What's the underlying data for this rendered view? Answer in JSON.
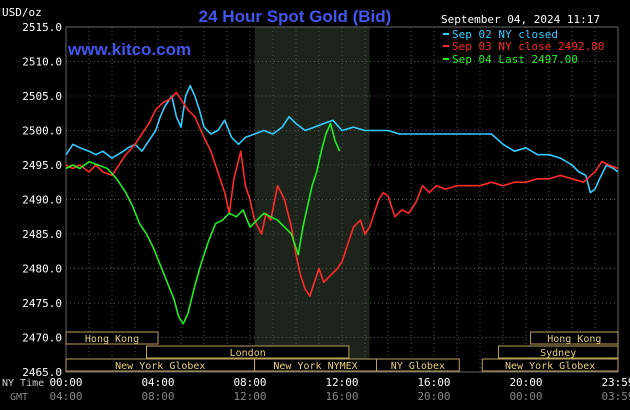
{
  "chart_data": {
    "type": "line",
    "title": "24 Hour Spot Gold (Bid)",
    "watermark": "www.kitco.com",
    "date_label": "September 04, 2024 11:17",
    "ylabel": "USD/oz",
    "ylim": [
      2465,
      2515
    ],
    "xlim": [
      0,
      24
    ],
    "grid": true,
    "legend_position": "top-right",
    "y_ticks": [
      {
        "value": 2515,
        "label": "2515.0"
      },
      {
        "value": 2510,
        "label": "2510.0"
      },
      {
        "value": 2505,
        "label": "2505.0"
      },
      {
        "value": 2500,
        "label": "2500.0"
      },
      {
        "value": 2495,
        "label": "2495.0"
      },
      {
        "value": 2490,
        "label": "2490.0"
      },
      {
        "value": 2485,
        "label": "2485.0"
      },
      {
        "value": 2480,
        "label": "2480.0"
      },
      {
        "value": 2475,
        "label": "2475.0"
      },
      {
        "value": 2470,
        "label": "2470.0"
      },
      {
        "value": 2465,
        "label": "2465.0"
      }
    ],
    "x_axis_label": "NY Time",
    "x_ticks": [
      {
        "hour": 0,
        "label": "00:00"
      },
      {
        "hour": 4,
        "label": "04:00"
      },
      {
        "hour": 8,
        "label": "08:00"
      },
      {
        "hour": 12,
        "label": "12:00"
      },
      {
        "hour": 16,
        "label": "16:00"
      },
      {
        "hour": 20,
        "label": "20:00"
      },
      {
        "hour": 24,
        "label": "23:59"
      }
    ],
    "x2_axis_label": "GMT",
    "x2_ticks": [
      {
        "hour": 0,
        "label": "04:00"
      },
      {
        "hour": 4,
        "label": "08:00"
      },
      {
        "hour": 8,
        "label": "12:00"
      },
      {
        "hour": 12,
        "label": "16:00"
      },
      {
        "hour": 16,
        "label": "20:00"
      },
      {
        "hour": 20,
        "label": "00:00"
      },
      {
        "hour": 24,
        "label": "03:59"
      }
    ],
    "highlight_band": [
      8.2,
      13.2
    ],
    "sessions": [
      {
        "name": "Hong Kong",
        "row": 0,
        "start": 0,
        "end": 4
      },
      {
        "name": "Hong Kong",
        "row": 0,
        "start": 20.2,
        "end": 24
      },
      {
        "name": "London",
        "row": 1,
        "start": 3.5,
        "end": 12.3
      },
      {
        "name": "Sydney",
        "row": 1,
        "start": 18.8,
        "end": 24
      },
      {
        "name": "New York Globex",
        "row": 2,
        "start": 0,
        "end": 8.2
      },
      {
        "name": "New York NYMEX",
        "row": 2,
        "start": 8.2,
        "end": 13.5
      },
      {
        "name": "NY Globex",
        "row": 2,
        "start": 13.5,
        "end": 17.1
      },
      {
        "name": "New York Globex",
        "row": 2,
        "start": 18.1,
        "end": 24
      }
    ],
    "series": [
      {
        "name": "Sep 02 NY closed",
        "color": "#33ccff",
        "points": [
          [
            0,
            2496.5
          ],
          [
            0.3,
            2498
          ],
          [
            0.6,
            2497.5
          ],
          [
            1,
            2497
          ],
          [
            1.3,
            2496.5
          ],
          [
            1.6,
            2497
          ],
          [
            2,
            2496
          ],
          [
            2.4,
            2496.8
          ],
          [
            2.7,
            2497.5
          ],
          [
            3,
            2498
          ],
          [
            3.3,
            2497
          ],
          [
            3.6,
            2498.5
          ],
          [
            3.9,
            2500
          ],
          [
            4.1,
            2502
          ],
          [
            4.3,
            2503.5
          ],
          [
            4.6,
            2505
          ],
          [
            4.8,
            2502
          ],
          [
            5,
            2500.5
          ],
          [
            5.2,
            2505
          ],
          [
            5.4,
            2506.5
          ],
          [
            5.6,
            2505
          ],
          [
            5.8,
            2503
          ],
          [
            6,
            2500.5
          ],
          [
            6.3,
            2499.5
          ],
          [
            6.6,
            2500
          ],
          [
            6.9,
            2501.5
          ],
          [
            7.2,
            2499
          ],
          [
            7.5,
            2498
          ],
          [
            7.8,
            2499
          ],
          [
            8.2,
            2499.5
          ],
          [
            8.6,
            2500
          ],
          [
            9,
            2499.5
          ],
          [
            9.4,
            2500.5
          ],
          [
            9.7,
            2502
          ],
          [
            10,
            2501
          ],
          [
            10.4,
            2500
          ],
          [
            10.8,
            2500.5
          ],
          [
            11.2,
            2501
          ],
          [
            11.6,
            2501.5
          ],
          [
            12,
            2500
          ],
          [
            12.5,
            2500.5
          ],
          [
            13,
            2500
          ],
          [
            13.5,
            2500
          ],
          [
            14,
            2500
          ],
          [
            14.5,
            2499.5
          ],
          [
            15,
            2499.5
          ],
          [
            15.5,
            2499.5
          ],
          [
            16,
            2499.5
          ],
          [
            16.5,
            2499.5
          ],
          [
            17,
            2499.5
          ],
          [
            17.5,
            2499.5
          ],
          [
            18,
            2499.5
          ],
          [
            18.5,
            2499.5
          ],
          [
            19,
            2498
          ],
          [
            19.5,
            2497
          ],
          [
            20,
            2497.5
          ],
          [
            20.5,
            2496.5
          ],
          [
            21,
            2496.5
          ],
          [
            21.5,
            2496
          ],
          [
            22,
            2495
          ],
          [
            22.3,
            2494
          ],
          [
            22.6,
            2493.5
          ],
          [
            22.8,
            2491
          ],
          [
            23,
            2491.5
          ],
          [
            23.2,
            2493
          ],
          [
            23.5,
            2495
          ],
          [
            23.8,
            2494.5
          ],
          [
            24,
            2494
          ]
        ]
      },
      {
        "name": "Sep 03 NY close 2492.80",
        "color": "#ff2a2a",
        "points": [
          [
            0,
            2495
          ],
          [
            0.3,
            2494.5
          ],
          [
            0.6,
            2495
          ],
          [
            1,
            2494
          ],
          [
            1.3,
            2495
          ],
          [
            1.6,
            2494
          ],
          [
            2,
            2493.5
          ],
          [
            2.3,
            2495
          ],
          [
            2.6,
            2496.5
          ],
          [
            3,
            2498
          ],
          [
            3.3,
            2499.5
          ],
          [
            3.6,
            2501
          ],
          [
            3.9,
            2503
          ],
          [
            4.2,
            2504
          ],
          [
            4.5,
            2504.5
          ],
          [
            4.8,
            2505.5
          ],
          [
            5,
            2504.5
          ],
          [
            5.3,
            2503
          ],
          [
            5.6,
            2502
          ],
          [
            6,
            2499
          ],
          [
            6.3,
            2497
          ],
          [
            6.6,
            2494
          ],
          [
            6.9,
            2491
          ],
          [
            7.1,
            2488
          ],
          [
            7.3,
            2493
          ],
          [
            7.6,
            2497
          ],
          [
            7.8,
            2492
          ],
          [
            8,
            2490
          ],
          [
            8.2,
            2487
          ],
          [
            8.5,
            2485
          ],
          [
            8.7,
            2488
          ],
          [
            8.9,
            2487
          ],
          [
            9.2,
            2492
          ],
          [
            9.5,
            2490
          ],
          [
            9.8,
            2486
          ],
          [
            10,
            2482
          ],
          [
            10.2,
            2479
          ],
          [
            10.4,
            2477
          ],
          [
            10.6,
            2476
          ],
          [
            10.8,
            2478
          ],
          [
            11,
            2480
          ],
          [
            11.2,
            2478
          ],
          [
            11.5,
            2479
          ],
          [
            11.8,
            2480
          ],
          [
            12,
            2481
          ],
          [
            12.2,
            2483
          ],
          [
            12.5,
            2486
          ],
          [
            12.8,
            2487
          ],
          [
            13,
            2485
          ],
          [
            13.2,
            2486
          ],
          [
            13.4,
            2488
          ],
          [
            13.6,
            2490
          ],
          [
            13.8,
            2491
          ],
          [
            14,
            2490.5
          ],
          [
            14.3,
            2487.5
          ],
          [
            14.6,
            2488.5
          ],
          [
            14.9,
            2488
          ],
          [
            15.2,
            2489.5
          ],
          [
            15.5,
            2492
          ],
          [
            15.8,
            2491
          ],
          [
            16.1,
            2492
          ],
          [
            16.5,
            2491.5
          ],
          [
            17,
            2492
          ],
          [
            17.5,
            2492
          ],
          [
            18,
            2492
          ],
          [
            18.5,
            2492.5
          ],
          [
            19,
            2492
          ],
          [
            19.5,
            2492.5
          ],
          [
            20,
            2492.5
          ],
          [
            20.5,
            2493
          ],
          [
            21,
            2493
          ],
          [
            21.5,
            2493.5
          ],
          [
            22,
            2493
          ],
          [
            22.5,
            2492.5
          ],
          [
            23,
            2494
          ],
          [
            23.3,
            2495.5
          ],
          [
            23.6,
            2495
          ],
          [
            24,
            2494.5
          ]
        ]
      },
      {
        "name": "Sep 04 Last 2497.00",
        "color": "#22ee22",
        "points": [
          [
            0,
            2494.5
          ],
          [
            0.3,
            2495
          ],
          [
            0.6,
            2494.5
          ],
          [
            1,
            2495.5
          ],
          [
            1.4,
            2495
          ],
          [
            1.8,
            2494.5
          ],
          [
            2.2,
            2493
          ],
          [
            2.6,
            2491
          ],
          [
            2.9,
            2489
          ],
          [
            3.2,
            2486.5
          ],
          [
            3.5,
            2485
          ],
          [
            3.8,
            2483
          ],
          [
            4.1,
            2480.5
          ],
          [
            4.4,
            2478
          ],
          [
            4.7,
            2475.5
          ],
          [
            4.9,
            2473
          ],
          [
            5.1,
            2472
          ],
          [
            5.3,
            2473.5
          ],
          [
            5.6,
            2477.5
          ],
          [
            5.9,
            2481
          ],
          [
            6.2,
            2484
          ],
          [
            6.5,
            2486.5
          ],
          [
            6.8,
            2487
          ],
          [
            7.1,
            2488
          ],
          [
            7.4,
            2487.5
          ],
          [
            7.7,
            2488.5
          ],
          [
            8,
            2486
          ],
          [
            8.3,
            2487
          ],
          [
            8.6,
            2488
          ],
          [
            8.9,
            2487.5
          ],
          [
            9.2,
            2487
          ],
          [
            9.5,
            2486
          ],
          [
            9.8,
            2485
          ],
          [
            10.1,
            2482
          ],
          [
            10.3,
            2486
          ],
          [
            10.5,
            2489
          ],
          [
            10.7,
            2492
          ],
          [
            10.9,
            2494
          ],
          [
            11.1,
            2497
          ],
          [
            11.3,
            2499.5
          ],
          [
            11.5,
            2501
          ],
          [
            11.7,
            2498.5
          ],
          [
            11.9,
            2497
          ]
        ]
      }
    ]
  }
}
